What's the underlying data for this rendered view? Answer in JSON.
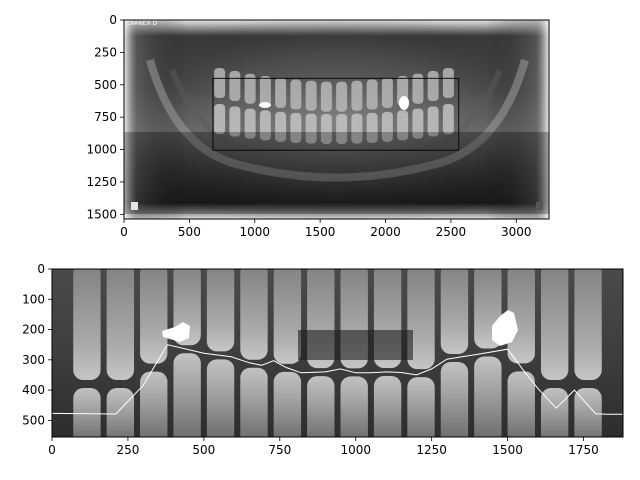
{
  "figure": {
    "background": "#ffffff",
    "axis_color": "#000000",
    "trace_color": "#ffffff"
  },
  "top_panel": {
    "image_desc_icon": "panoramic-dental-xray-icon",
    "corner_marker": "CRANEX D",
    "x_ticks": [
      "0",
      "500",
      "1000",
      "1500",
      "2000",
      "2500",
      "3000"
    ],
    "y_ticks": [
      "0",
      "250",
      "500",
      "750",
      "1000",
      "1250",
      "1500"
    ],
    "image_size": [
      3250,
      1536
    ],
    "roi_box_data": {
      "x0": 680,
      "x1": 2560,
      "y0": 450,
      "y1": 1005
    }
  },
  "bottom_panel": {
    "image_desc_icon": "cropped-teeth-xray-icon",
    "x_ticks": [
      "0",
      "250",
      "500",
      "750",
      "1000",
      "1250",
      "1500",
      "1750"
    ],
    "y_ticks": [
      "0",
      "100",
      "200",
      "300",
      "400",
      "500"
    ],
    "image_size": [
      1880,
      555
    ]
  },
  "chart_data": [
    {
      "type": "line",
      "series": [
        {
          "x": [
            0,
            210,
            300,
            380,
            500,
            590,
            650,
            690,
            730,
            770,
            820,
            900,
            950,
            1000,
            1050,
            1100,
            1150,
            1200,
            1250,
            1300,
            1350,
            1400,
            1500,
            1560,
            1600,
            1660,
            1720,
            1790,
            1830,
            1880
          ],
          "y": [
            477,
            479,
            385,
            250,
            278,
            290,
            310,
            318,
            303,
            325,
            343,
            340,
            330,
            343,
            343,
            340,
            342,
            350,
            330,
            298,
            290,
            282,
            265,
            345,
            395,
            460,
            400,
            478,
            480,
            480
          ]
        }
      ],
      "xlim": [
        0,
        1880
      ],
      "ylim": [
        555,
        0
      ]
    }
  ]
}
